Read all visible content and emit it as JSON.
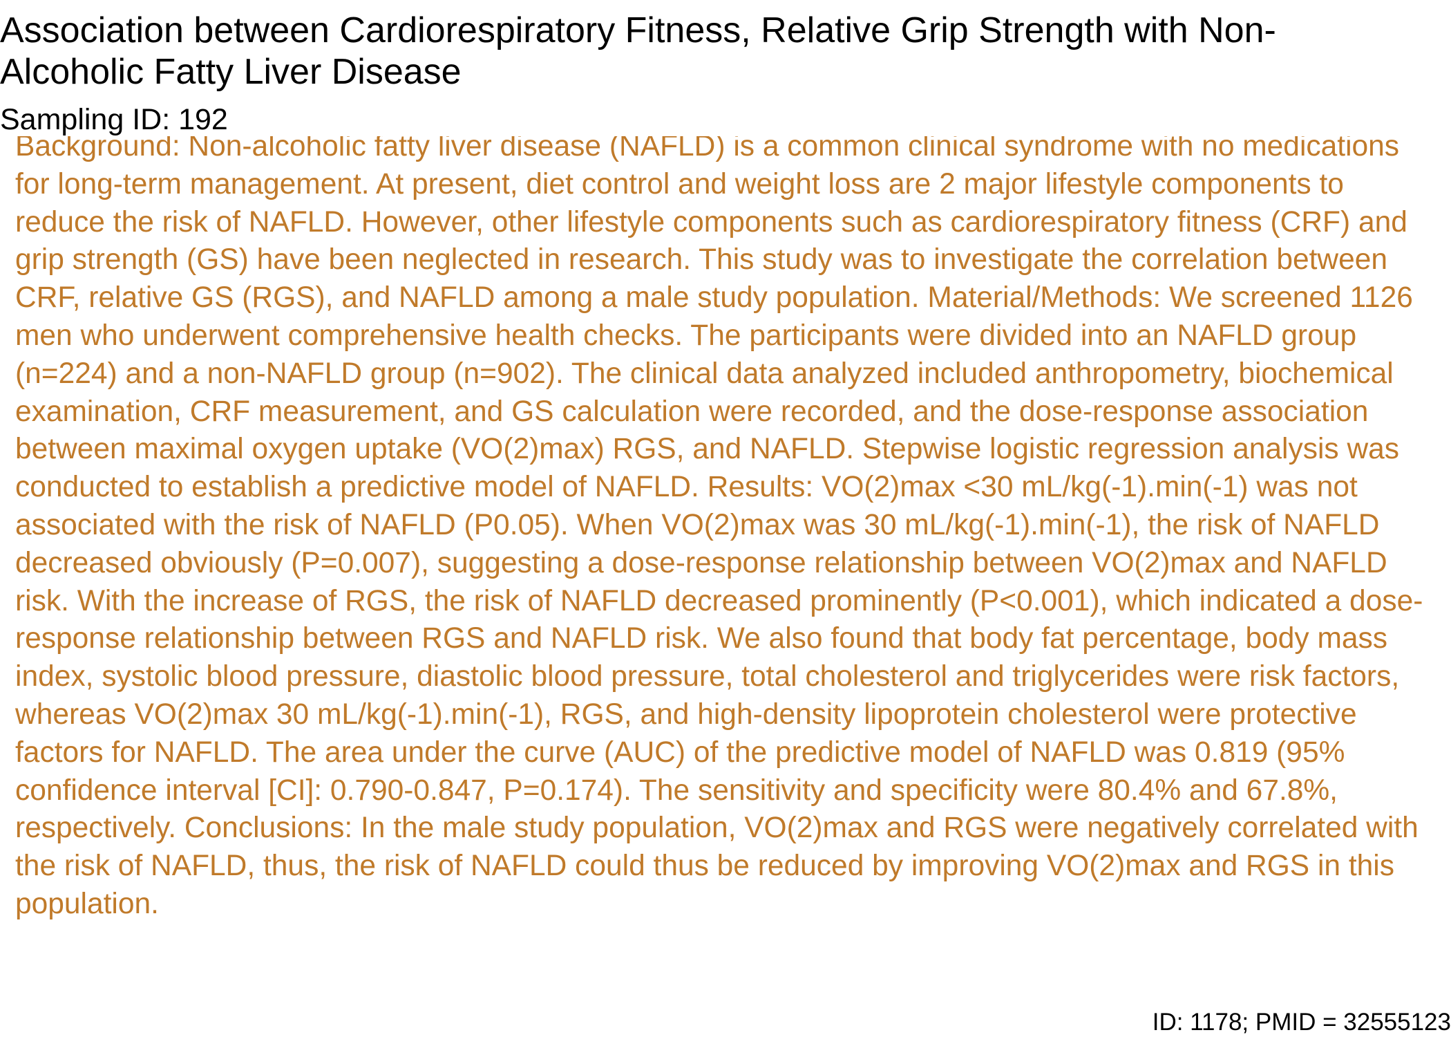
{
  "document": {
    "title": "Association between Cardiorespiratory Fitness, Relative Grip Strength with Non-Alcoholic Fatty Liver Disease",
    "sampling_id": "Sampling ID: 192",
    "abstract": "Background: Non-alcoholic fatty liver disease (NAFLD) is a common clinical syndrome with no medications for long-term management. At present, diet control and weight loss are 2 major lifestyle components to reduce the risk of NAFLD. However, other lifestyle components such as cardiorespiratory fitness (CRF) and grip strength (GS) have been neglected in research. This study was to investigate the correlation between CRF, relative GS (RGS), and NAFLD among a male study population. Material/Methods: We screened 1126 men who underwent comprehensive health checks. The participants were divided into an NAFLD group (n=224) and a non-NAFLD group (n=902). The clinical data analyzed included anthropometry, biochemical examination, CRF measurement, and GS calculation were recorded, and the dose-response association between maximal oxygen uptake (VO(2)max) RGS, and NAFLD. Stepwise logistic regression analysis was conducted to establish a predictive model of NAFLD. Results: VO(2)max <30 mL/kg(-1).min(-1) was not associated with the risk of NAFLD (P0.05). When VO(2)max was 30 mL/kg(-1).min(-1), the risk of NAFLD decreased obviously (P=0.007), suggesting a dose-response relationship between VO(2)max and NAFLD risk. With the increase of RGS, the risk of NAFLD decreased prominently (P<0.001), which indicated a dose-response relationship between RGS and NAFLD risk. We also found that body fat percentage, body mass index, systolic blood pressure, diastolic blood pressure, total cholesterol and triglycerides were risk factors, whereas VO(2)max 30 mL/kg(-1).min(-1), RGS, and high-density lipoprotein cholesterol were protective factors for NAFLD. The area under the curve (AUC) of the predictive model of NAFLD was 0.819 (95% confidence interval [CI]: 0.790-0.847, P=0.174). The sensitivity and specificity were 80.4% and 67.8%, respectively. Conclusions: In the male study population, VO(2)max and RGS were negatively correlated with the risk of NAFLD, thus, the risk of NAFLD could thus be reduced by improving VO(2)max and RGS in this population.",
    "footer_id": "ID: 1178; PMID = 32555123"
  },
  "colors": {
    "abstract_text": "#c07a2a",
    "heading_text": "#000000",
    "background": "#ffffff"
  }
}
